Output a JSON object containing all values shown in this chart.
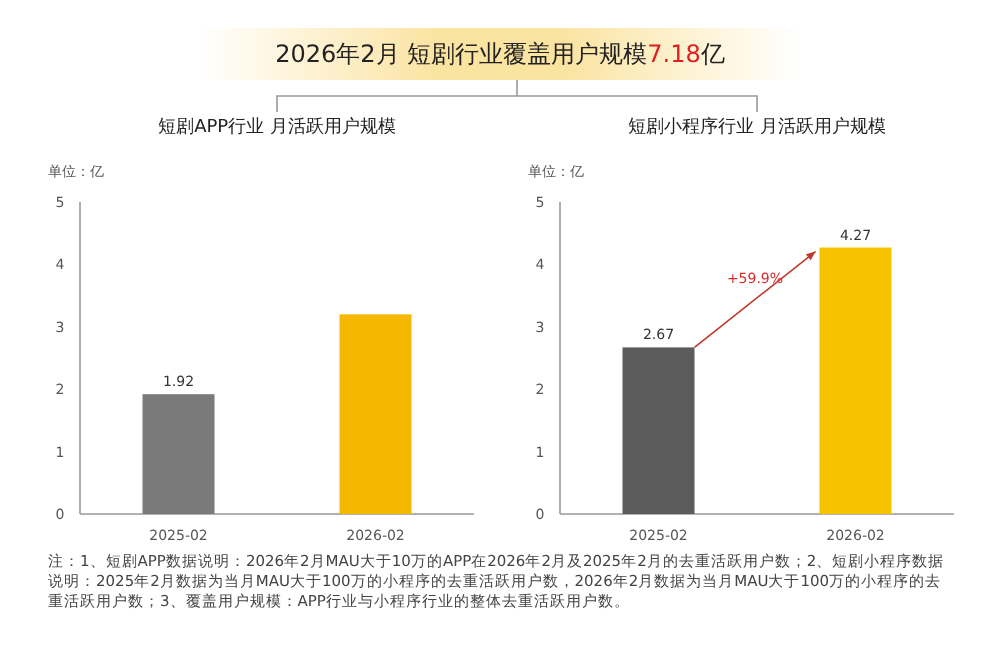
{
  "chart_data": [
    {
      "type": "other",
      "title": "2026年2月 短剧行业覆盖用户规模7.18亿",
      "annotations": [
        "注：1、短剧APP数据说明：2026年2月MAU大于10万的APP在2026年2月及2025年2月的去重活跃用户数；2、短剧小程序数据说明：2025年2月数据为当月MAU大于100万的小程序的去重活跃用户数，2026年2月数据为当月MAU大于100万的小程序的去重活跃用户数；3、覆盖用户规模：APP行业与小程序行业的整体去重活跃用户数。"
      ]
    },
    {
      "type": "bar",
      "title": "短剧APP行业 月活跃用户规模",
      "ylabel": "单位：亿",
      "categories": [
        "2025-02",
        "2026-02"
      ],
      "values": [
        1.92,
        3.2
      ],
      "colors": [
        "#7a7a7a",
        "#f5b800"
      ],
      "value_labels": [
        "1.92",
        null
      ],
      "ylim": [
        0,
        5
      ],
      "yticks": [
        0,
        1,
        2,
        3,
        4,
        5
      ]
    },
    {
      "type": "bar",
      "title": "短剧小程序行业 月活跃用户规模",
      "ylabel": "单位：亿",
      "categories": [
        "2025-02",
        "2026-02"
      ],
      "values": [
        2.67,
        4.27
      ],
      "colors": [
        "#5c5c5c",
        "#f7c200"
      ],
      "value_labels": [
        "2.67",
        "4.27"
      ],
      "ylim": [
        0,
        5
      ],
      "yticks": [
        0,
        1,
        2,
        3,
        4,
        5
      ],
      "annotations": [
        "+59.9%"
      ]
    }
  ]
}
